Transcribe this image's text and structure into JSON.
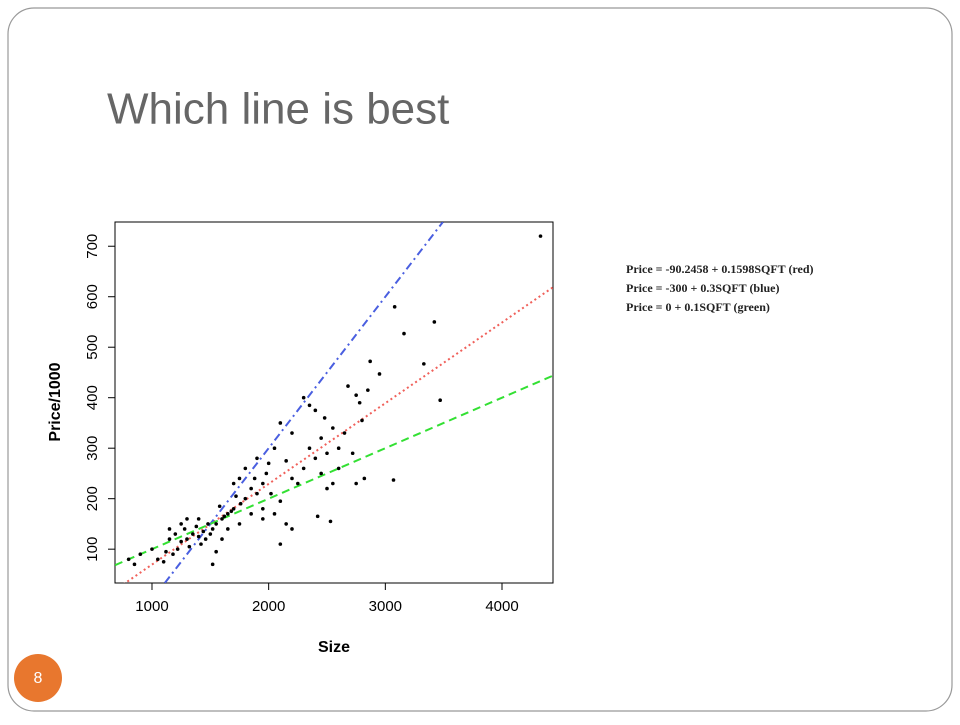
{
  "slide": {
    "title": "Which line is best",
    "page_number": "8",
    "equations": [
      "Price = -90.2458 + 0.1598SQFT (red)",
      "Price = -300 + 0.3SQFT (blue)",
      "Price = 0 + 0.1SQFT (green)"
    ]
  },
  "chart_data": {
    "type": "scatter",
    "xlabel": "Size",
    "ylabel": "Price/1000",
    "xlim": [
      683,
      4437
    ],
    "ylim": [
      33,
      748
    ],
    "xticks": [
      1000,
      2000,
      3000,
      4000
    ],
    "yticks": [
      100,
      200,
      300,
      400,
      500,
      600,
      700
    ],
    "points": {
      "color": "#000000",
      "x": [
        4330,
        3080,
        3160,
        3420,
        3330,
        3470,
        2870,
        2950,
        3070,
        2850,
        2750,
        2680,
        2780,
        2400,
        2480,
        2350,
        2550,
        2720,
        2800,
        2750,
        2820,
        2530,
        2420,
        2250,
        2200,
        2150,
        2100,
        2050,
        2000,
        1980,
        1950,
        2020,
        2100,
        2150,
        2100,
        2200,
        1900,
        1880,
        1850,
        1800,
        1760,
        1720,
        1700,
        1680,
        1650,
        1620,
        1600,
        1580,
        1550,
        1520,
        1500,
        1480,
        1460,
        1440,
        1420,
        1400,
        1380,
        1350,
        1320,
        1300,
        1280,
        1250,
        1220,
        1200,
        1180,
        1150,
        1120,
        1100,
        1050,
        1000,
        900,
        850,
        800,
        1550,
        1520,
        1600,
        1700,
        1750,
        1800,
        1900,
        1950,
        2050,
        2300,
        2350,
        2400,
        2450,
        2500,
        2600,
        2650,
        2450,
        2300,
        2200,
        1650,
        1750,
        1850,
        1950,
        1400,
        1300,
        1250,
        1150,
        2500,
        2550,
        2600
      ],
      "values": [
        720,
        580,
        527,
        550,
        467,
        395,
        472,
        447,
        237,
        415,
        405,
        423,
        390,
        375,
        360,
        385,
        340,
        290,
        355,
        230,
        240,
        155,
        165,
        230,
        240,
        275,
        350,
        300,
        270,
        250,
        230,
        210,
        195,
        150,
        110,
        140,
        280,
        240,
        220,
        200,
        190,
        205,
        180,
        175,
        170,
        165,
        160,
        185,
        150,
        140,
        130,
        150,
        120,
        135,
        110,
        125,
        145,
        130,
        105,
        120,
        140,
        115,
        100,
        130,
        90,
        120,
        95,
        75,
        80,
        100,
        90,
        70,
        80,
        95,
        70,
        120,
        230,
        240,
        260,
        210,
        180,
        170,
        260,
        300,
        280,
        250,
        220,
        300,
        330,
        320,
        400,
        330,
        140,
        150,
        170,
        160,
        160,
        160,
        150,
        140,
        290,
        230,
        260
      ]
    },
    "lines": [
      {
        "color": "#f0605a",
        "style": "dotted",
        "x": [
          683,
          4437
        ],
        "values": [
          18.9,
          618.8
        ]
      },
      {
        "color": "#4a5fe0",
        "style": "dashdot",
        "x": [
          1110,
          3493
        ],
        "values": [
          33,
          747.9
        ]
      },
      {
        "color": "#33e033",
        "style": "dashed",
        "x": [
          683,
          4437
        ],
        "values": [
          68.3,
          443.7
        ]
      }
    ]
  }
}
